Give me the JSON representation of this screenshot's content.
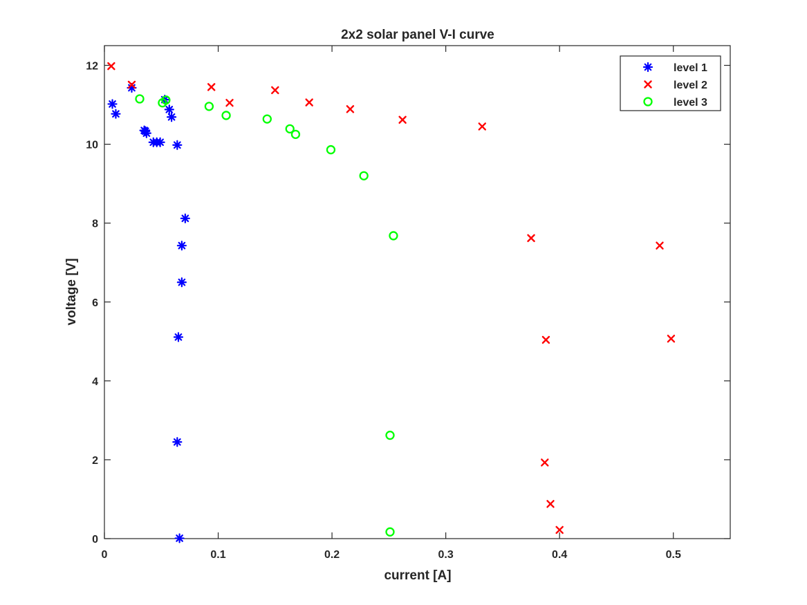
{
  "chart_data": {
    "type": "scatter",
    "title": "2x2 solar panel V-I curve",
    "xlabel": "current [A]",
    "ylabel": "voltage [V]",
    "xlim": [
      0,
      0.55
    ],
    "ylim": [
      0,
      12.5
    ],
    "xticks": [
      0,
      0.1,
      0.2,
      0.3,
      0.4,
      0.5
    ],
    "xtick_labels": [
      "0",
      "0.1",
      "0.2",
      "0.3",
      "0.4",
      "0.5"
    ],
    "yticks": [
      0,
      2,
      4,
      6,
      8,
      10,
      12
    ],
    "ytick_labels": [
      "0",
      "2",
      "4",
      "6",
      "8",
      "10",
      "12"
    ],
    "grid": false,
    "legend_position": "top-right",
    "series": [
      {
        "name": "level 1",
        "marker": "asterisk",
        "color": "#0000ff",
        "x": [
          0.007,
          0.01,
          0.024,
          0.035,
          0.036,
          0.037,
          0.043,
          0.046,
          0.049,
          0.053,
          0.057,
          0.059,
          0.064,
          0.071,
          0.068,
          0.068,
          0.065,
          0.064,
          0.066
        ],
        "y": [
          11.02,
          10.77,
          11.43,
          10.35,
          10.33,
          10.28,
          10.05,
          10.05,
          10.05,
          11.13,
          10.88,
          10.69,
          9.98,
          8.12,
          7.43,
          6.5,
          5.11,
          2.45,
          0.01
        ]
      },
      {
        "name": "level 2",
        "marker": "x",
        "color": "#ff0000",
        "x": [
          0.006,
          0.024,
          0.094,
          0.11,
          0.15,
          0.18,
          0.216,
          0.262,
          0.332,
          0.375,
          0.488,
          0.388,
          0.498,
          0.387,
          0.392,
          0.4
        ],
        "y": [
          11.98,
          11.51,
          11.45,
          11.05,
          11.37,
          11.06,
          10.89,
          10.62,
          10.45,
          7.62,
          7.43,
          5.04,
          5.07,
          1.93,
          0.88,
          0.22
        ]
      },
      {
        "name": "level 3",
        "marker": "circle",
        "color": "#00ff00",
        "x": [
          0.031,
          0.051,
          0.054,
          0.092,
          0.107,
          0.143,
          0.163,
          0.168,
          0.199,
          0.228,
          0.254,
          0.251,
          0.251
        ],
        "y": [
          11.15,
          11.05,
          11.12,
          10.96,
          10.73,
          10.64,
          10.39,
          10.25,
          9.86,
          9.2,
          7.68,
          2.62,
          0.17
        ]
      }
    ]
  }
}
